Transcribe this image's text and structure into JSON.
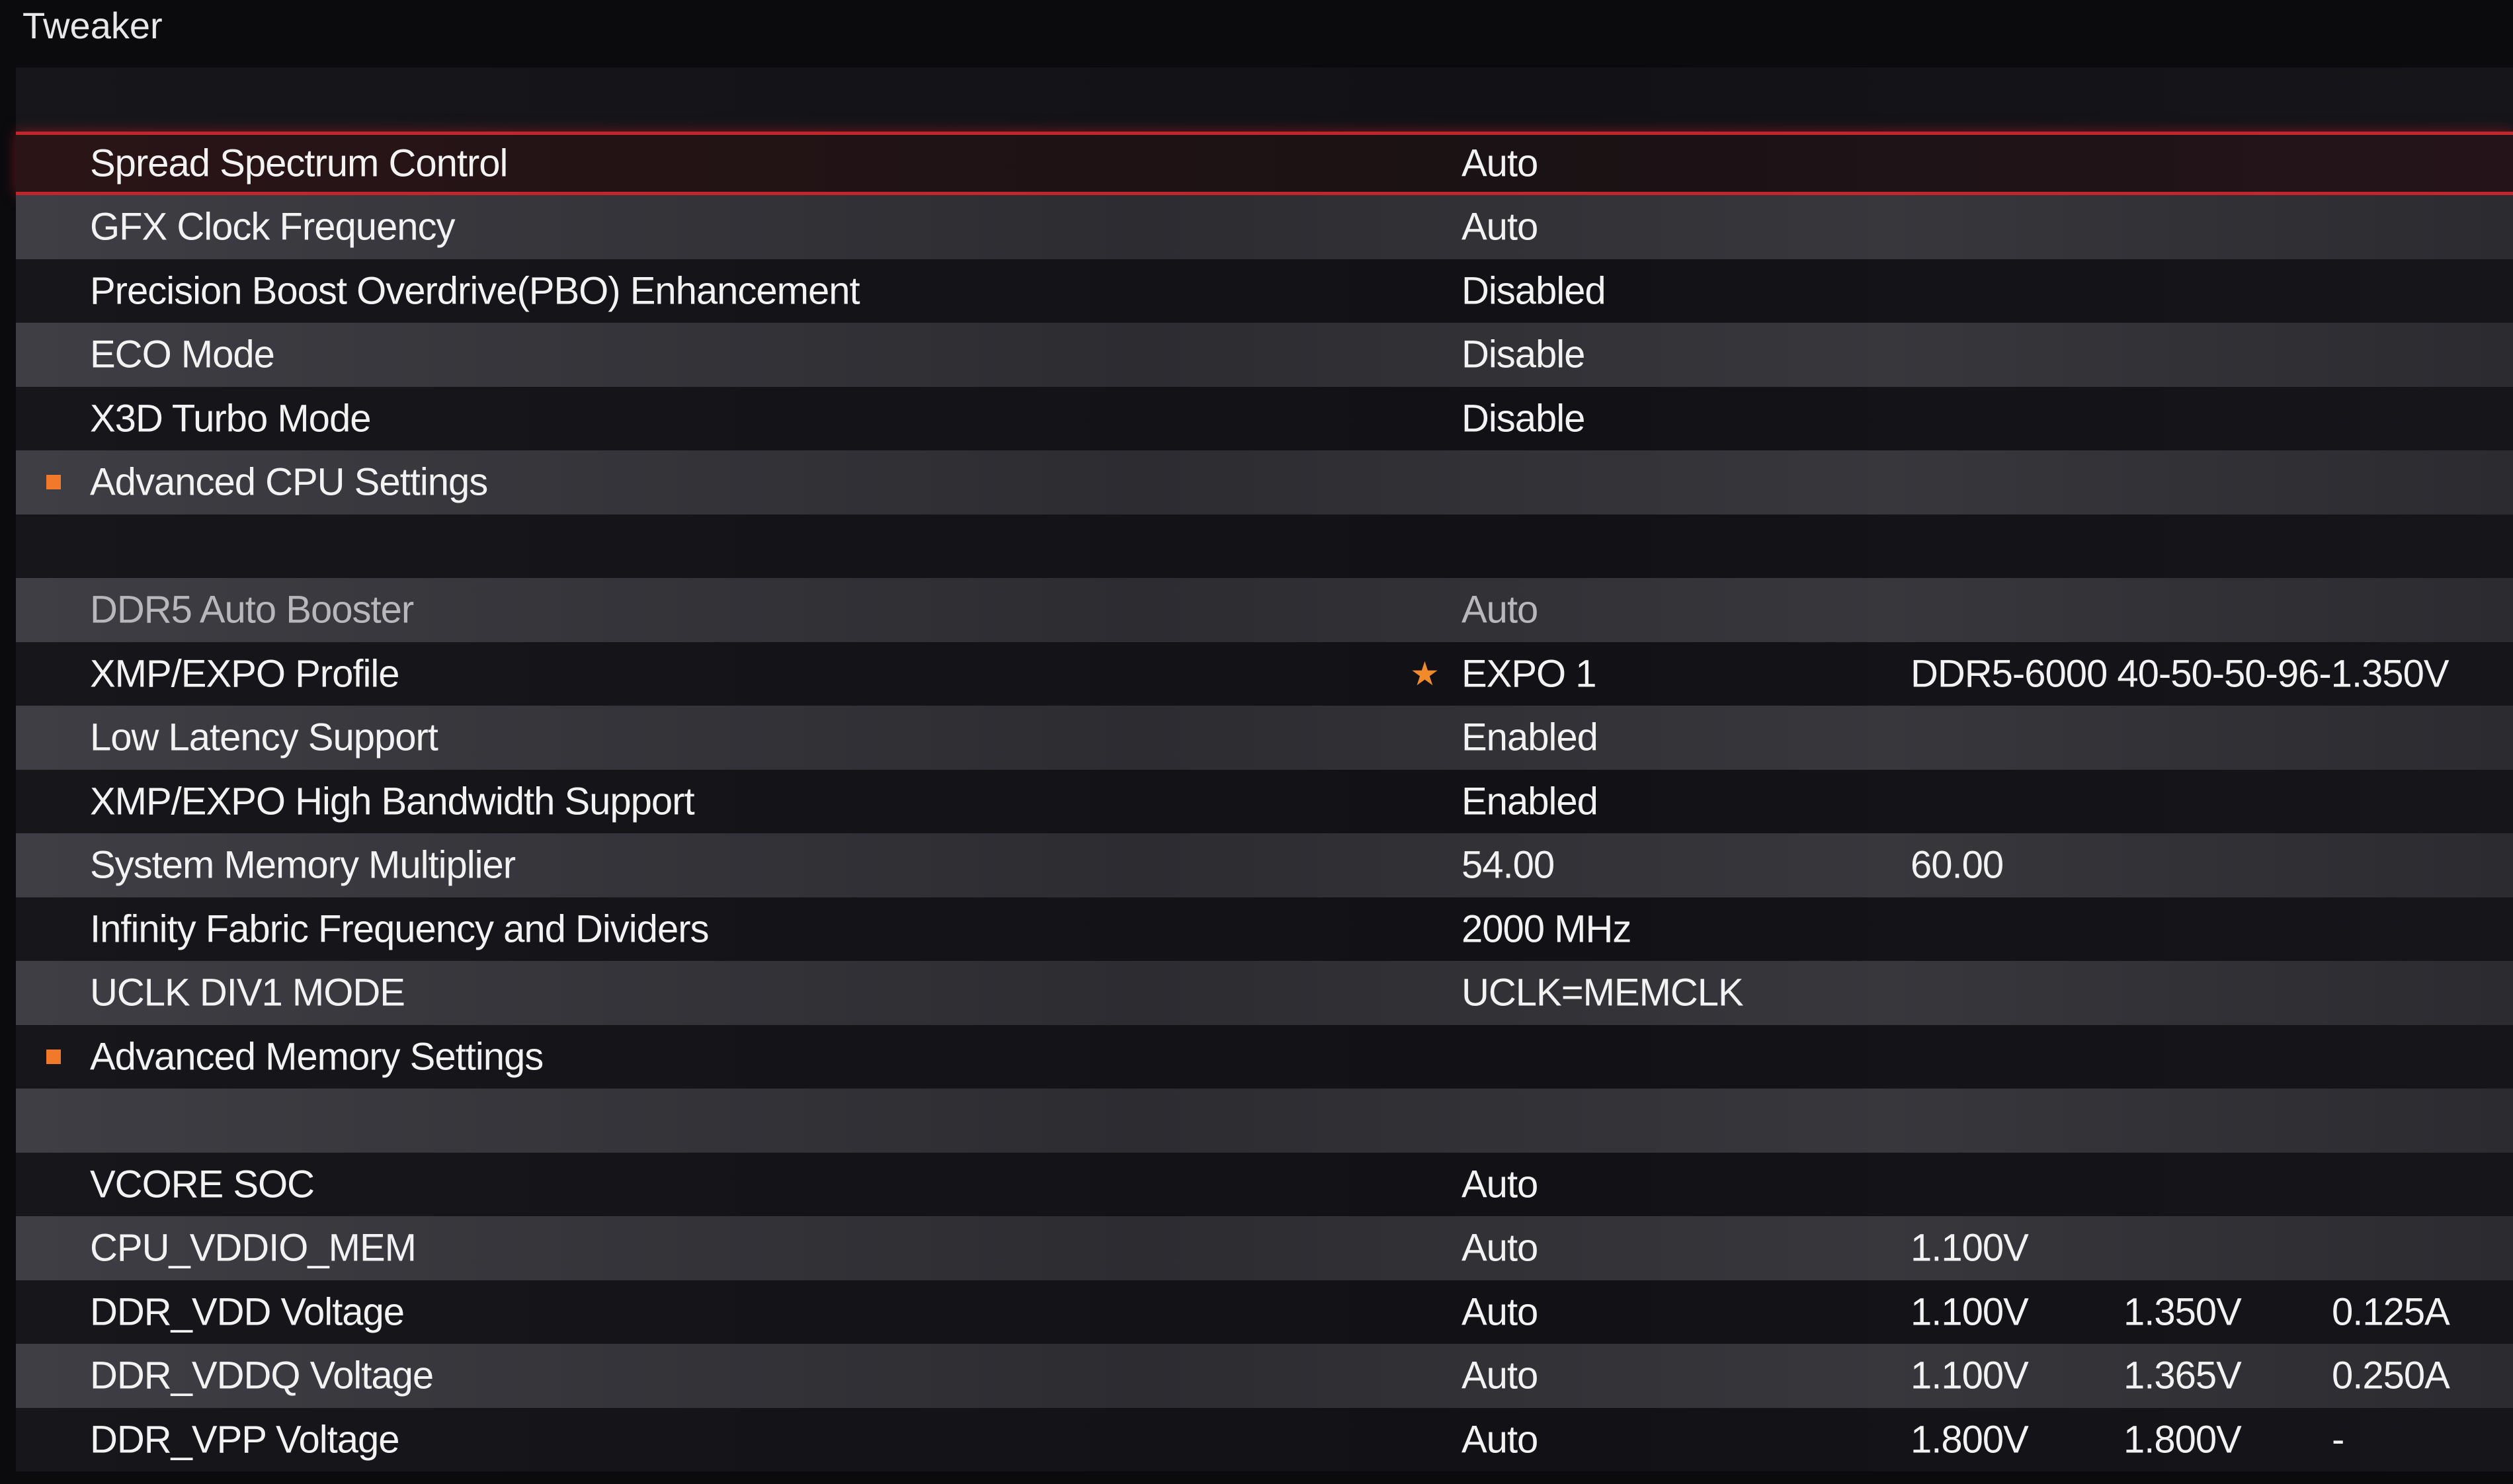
{
  "header": {
    "title": "Tweaker"
  },
  "colors": {
    "accent": "#c0262c",
    "bullet": "#f07a2a"
  },
  "rows": [
    {
      "type": "blank",
      "shade": "dark"
    },
    {
      "type": "item",
      "shade": "selected",
      "cells": [
        "Spread Spectrum Control",
        "Auto"
      ]
    },
    {
      "type": "item",
      "shade": "light",
      "cells": [
        "GFX Clock Frequency",
        "Auto"
      ]
    },
    {
      "type": "item",
      "shade": "dark",
      "cells": [
        "Precision Boost Overdrive(PBO) Enhancement",
        "Disabled"
      ]
    },
    {
      "type": "item",
      "shade": "light",
      "cells": [
        "ECO Mode",
        "Disable"
      ]
    },
    {
      "type": "item",
      "shade": "dark",
      "cells": [
        "X3D Turbo Mode",
        "Disable"
      ]
    },
    {
      "type": "section",
      "shade": "light",
      "cells": [
        "Advanced CPU Settings"
      ]
    },
    {
      "type": "blank",
      "shade": "dark"
    },
    {
      "type": "item",
      "shade": "light",
      "disabled": true,
      "cells": [
        "DDR5 Auto Booster",
        "Auto"
      ]
    },
    {
      "type": "item",
      "shade": "dark",
      "star": true,
      "cells": [
        "XMP/EXPO Profile",
        "EXPO 1",
        "DDR5-6000 40-50-50-96-1.350V"
      ]
    },
    {
      "type": "item",
      "shade": "light",
      "cells": [
        "Low Latency Support",
        "Enabled"
      ]
    },
    {
      "type": "item",
      "shade": "dark",
      "cells": [
        "XMP/EXPO High Bandwidth Support",
        "Enabled"
      ]
    },
    {
      "type": "item",
      "shade": "light",
      "cells": [
        "System Memory Multiplier",
        "54.00",
        "60.00"
      ]
    },
    {
      "type": "item",
      "shade": "dark",
      "cells": [
        "Infinity Fabric Frequency and Dividers",
        "2000 MHz"
      ]
    },
    {
      "type": "item",
      "shade": "light",
      "cells": [
        "UCLK DIV1 MODE",
        "UCLK=MEMCLK"
      ]
    },
    {
      "type": "section",
      "shade": "dark",
      "cells": [
        "Advanced Memory Settings"
      ]
    },
    {
      "type": "blank",
      "shade": "light"
    },
    {
      "type": "item",
      "shade": "dark",
      "cells": [
        "VCORE SOC",
        "Auto"
      ]
    },
    {
      "type": "item",
      "shade": "light",
      "cells": [
        "CPU_VDDIO_MEM",
        "Auto",
        "1.100V"
      ]
    },
    {
      "type": "item",
      "shade": "dark",
      "cells": [
        "DDR_VDD Voltage",
        "Auto",
        "1.100V",
        "1.350V",
        "0.125A"
      ]
    },
    {
      "type": "item",
      "shade": "light",
      "cells": [
        "DDR_VDDQ Voltage",
        "Auto",
        "1.100V",
        "1.365V",
        "0.250A"
      ]
    },
    {
      "type": "item",
      "shade": "dark",
      "cells": [
        "DDR_VPP Voltage",
        "Auto",
        "1.800V",
        "1.800V",
        "-"
      ]
    }
  ]
}
